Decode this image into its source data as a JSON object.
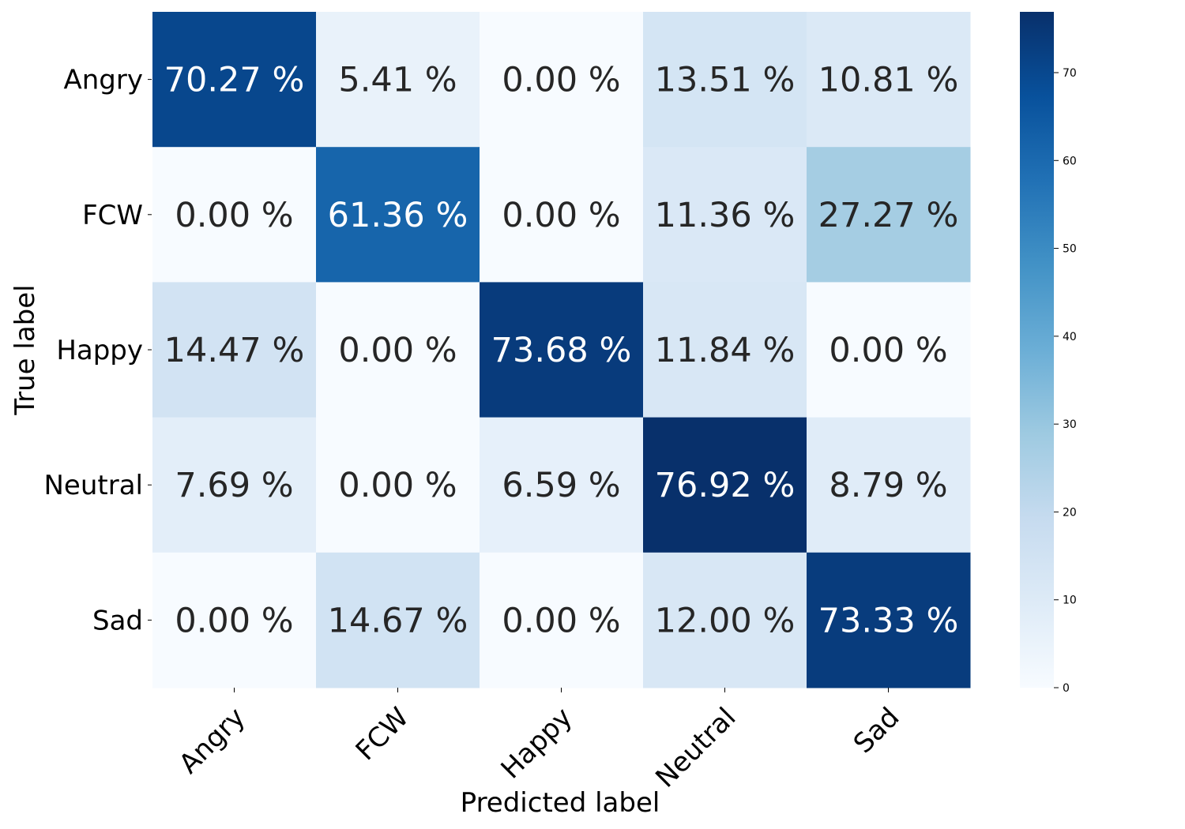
{
  "chart_data": {
    "type": "heatmap",
    "xlabel": "Predicted label",
    "ylabel": "True label",
    "x_categories": [
      "Angry",
      "FCW",
      "Happy",
      "Neutral",
      "Sad"
    ],
    "y_categories": [
      "Angry",
      "FCW",
      "Happy",
      "Neutral",
      "Sad"
    ],
    "values": [
      [
        70.27,
        5.41,
        0.0,
        13.51,
        10.81
      ],
      [
        0.0,
        61.36,
        0.0,
        11.36,
        27.27
      ],
      [
        14.47,
        0.0,
        73.68,
        11.84,
        0.0
      ],
      [
        7.69,
        0.0,
        6.59,
        76.92,
        8.79
      ],
      [
        0.0,
        14.67,
        0.0,
        12.0,
        73.33
      ]
    ],
    "cell_labels": [
      [
        "70.27 %",
        "5.41 %",
        "0.00 %",
        "13.51 %",
        "10.81 %"
      ],
      [
        "0.00 %",
        "61.36 %",
        "0.00 %",
        "11.36 %",
        "27.27 %"
      ],
      [
        "14.47 %",
        "0.00 %",
        "73.68 %",
        "11.84 %",
        "0.00 %"
      ],
      [
        "7.69 %",
        "0.00 %",
        "6.59 %",
        "76.92 %",
        "8.79 %"
      ],
      [
        "0.00 %",
        "14.67 %",
        "0.00 %",
        "12.00 %",
        "73.33 %"
      ]
    ],
    "colormap": "Blues",
    "colorbar": {
      "range": [
        0,
        76.92
      ],
      "ticks": [
        0,
        10,
        20,
        30,
        40,
        50,
        60,
        70
      ],
      "tick_labels": [
        "0",
        "10",
        "20",
        "30",
        "40",
        "50",
        "60",
        "70"
      ]
    }
  }
}
